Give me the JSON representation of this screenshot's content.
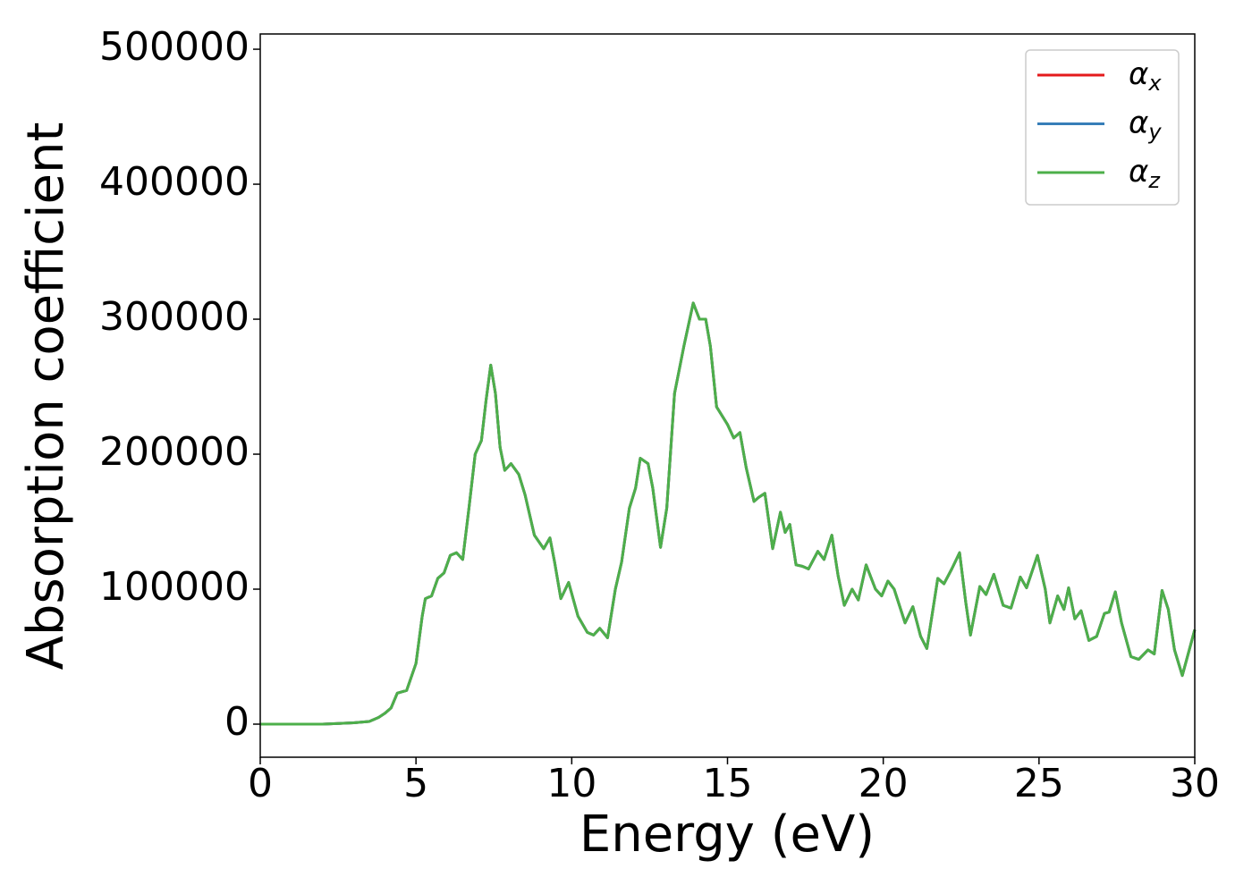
{
  "chart_data": {
    "type": "line",
    "xlabel": "Energy (eV)",
    "ylabel": "Absorption coefficient",
    "x": [
      0,
      2,
      3,
      3.5,
      3.8,
      4.0,
      4.2,
      4.4,
      4.7,
      5.0,
      5.2,
      5.3,
      5.5,
      5.7,
      5.9,
      6.1,
      6.3,
      6.5,
      6.7,
      6.9,
      7.1,
      7.25,
      7.4,
      7.55,
      7.7,
      7.85,
      8.05,
      8.3,
      8.5,
      8.8,
      9.1,
      9.3,
      9.45,
      9.65,
      9.9,
      10.2,
      10.5,
      10.7,
      10.9,
      11.15,
      11.4,
      11.6,
      11.85,
      12.05,
      12.2,
      12.45,
      12.6,
      12.85,
      13.05,
      13.3,
      13.6,
      13.9,
      14.1,
      14.3,
      14.45,
      14.65,
      15.0,
      15.2,
      15.4,
      15.6,
      15.85,
      16.0,
      16.2,
      16.45,
      16.7,
      16.85,
      17.0,
      17.2,
      17.4,
      17.6,
      17.9,
      18.1,
      18.35,
      18.55,
      18.75,
      19.0,
      19.2,
      19.45,
      19.75,
      19.95,
      20.15,
      20.35,
      20.7,
      20.95,
      21.2,
      21.4,
      21.75,
      21.95,
      22.2,
      22.45,
      22.65,
      22.8,
      23.1,
      23.3,
      23.55,
      23.85,
      24.1,
      24.4,
      24.6,
      24.95,
      25.2,
      25.35,
      25.6,
      25.8,
      25.95,
      26.15,
      26.35,
      26.6,
      26.85,
      27.1,
      27.25,
      27.45,
      27.65,
      27.95,
      28.2,
      28.5,
      28.7,
      28.95,
      29.15,
      29.35,
      29.6,
      30.0
    ],
    "series": [
      {
        "name": "αx",
        "color": "#e41a1c",
        "values": [
          0,
          0,
          1000,
          2000,
          5000,
          8000,
          12000,
          23000,
          25000,
          45000,
          80000,
          93000,
          95000,
          108000,
          112000,
          125000,
          127000,
          122000,
          160000,
          200000,
          210000,
          240000,
          266000,
          245000,
          205000,
          188000,
          193000,
          185000,
          170000,
          140000,
          130000,
          138000,
          120000,
          93000,
          105000,
          80000,
          68000,
          66000,
          71000,
          64000,
          100000,
          120000,
          160000,
          175000,
          197000,
          193000,
          175000,
          131000,
          160000,
          245000,
          280000,
          312000,
          300000,
          300000,
          280000,
          235000,
          222000,
          212000,
          216000,
          190000,
          165000,
          168000,
          171000,
          130000,
          157000,
          142000,
          148000,
          118000,
          117000,
          115000,
          128000,
          122000,
          140000,
          110000,
          88000,
          100000,
          92000,
          118000,
          100000,
          95000,
          106000,
          100000,
          75000,
          87000,
          65000,
          56000,
          108000,
          104000,
          115000,
          127000,
          90000,
          66000,
          102000,
          96000,
          111000,
          88000,
          86000,
          109000,
          101000,
          125000,
          100000,
          75000,
          95000,
          85000,
          101000,
          78000,
          84000,
          62000,
          65000,
          82000,
          83000,
          98000,
          75000,
          50000,
          48000,
          55000,
          52000,
          99000,
          85000,
          55000,
          36000,
          70000
        ]
      },
      {
        "name": "αy",
        "color": "#377eb8",
        "values": [
          0,
          0,
          1000,
          2000,
          5000,
          8000,
          12000,
          23000,
          25000,
          45000,
          80000,
          93000,
          95000,
          108000,
          112000,
          125000,
          127000,
          122000,
          160000,
          200000,
          210000,
          240000,
          266000,
          245000,
          205000,
          188000,
          193000,
          185000,
          170000,
          140000,
          130000,
          138000,
          120000,
          93000,
          105000,
          80000,
          68000,
          66000,
          71000,
          64000,
          100000,
          120000,
          160000,
          175000,
          197000,
          193000,
          175000,
          131000,
          160000,
          245000,
          280000,
          312000,
          300000,
          300000,
          280000,
          235000,
          222000,
          212000,
          216000,
          190000,
          165000,
          168000,
          171000,
          130000,
          157000,
          142000,
          148000,
          118000,
          117000,
          115000,
          128000,
          122000,
          140000,
          110000,
          88000,
          100000,
          92000,
          118000,
          100000,
          95000,
          106000,
          100000,
          75000,
          87000,
          65000,
          56000,
          108000,
          104000,
          115000,
          127000,
          90000,
          66000,
          102000,
          96000,
          111000,
          88000,
          86000,
          109000,
          101000,
          125000,
          100000,
          75000,
          95000,
          85000,
          101000,
          78000,
          84000,
          62000,
          65000,
          82000,
          83000,
          98000,
          75000,
          50000,
          48000,
          55000,
          52000,
          99000,
          85000,
          55000,
          36000,
          70000
        ]
      },
      {
        "name": "αz",
        "color": "#4daf4a",
        "values": [
          0,
          0,
          1000,
          2000,
          5000,
          8000,
          12000,
          23000,
          25000,
          45000,
          80000,
          93000,
          95000,
          108000,
          112000,
          125000,
          127000,
          122000,
          160000,
          200000,
          210000,
          240000,
          266000,
          245000,
          205000,
          188000,
          193000,
          185000,
          170000,
          140000,
          130000,
          138000,
          120000,
          93000,
          105000,
          80000,
          68000,
          66000,
          71000,
          64000,
          100000,
          120000,
          160000,
          175000,
          197000,
          193000,
          175000,
          131000,
          160000,
          245000,
          280000,
          312000,
          300000,
          300000,
          280000,
          235000,
          222000,
          212000,
          216000,
          190000,
          165000,
          168000,
          171000,
          130000,
          157000,
          142000,
          148000,
          118000,
          117000,
          115000,
          128000,
          122000,
          140000,
          110000,
          88000,
          100000,
          92000,
          118000,
          100000,
          95000,
          106000,
          100000,
          75000,
          87000,
          65000,
          56000,
          108000,
          104000,
          115000,
          127000,
          90000,
          66000,
          102000,
          96000,
          111000,
          88000,
          86000,
          109000,
          101000,
          125000,
          100000,
          75000,
          95000,
          85000,
          101000,
          78000,
          84000,
          62000,
          65000,
          82000,
          83000,
          98000,
          75000,
          50000,
          48000,
          55000,
          52000,
          99000,
          85000,
          55000,
          36000,
          70000
        ]
      }
    ],
    "xlim": [
      0,
      30
    ],
    "xticks": [
      0,
      5,
      10,
      15,
      20,
      25,
      30
    ],
    "ylim": [
      -24500,
      511300
    ],
    "yticks": [
      0,
      100000,
      200000,
      300000,
      400000,
      500000
    ],
    "legend": "upper right"
  }
}
